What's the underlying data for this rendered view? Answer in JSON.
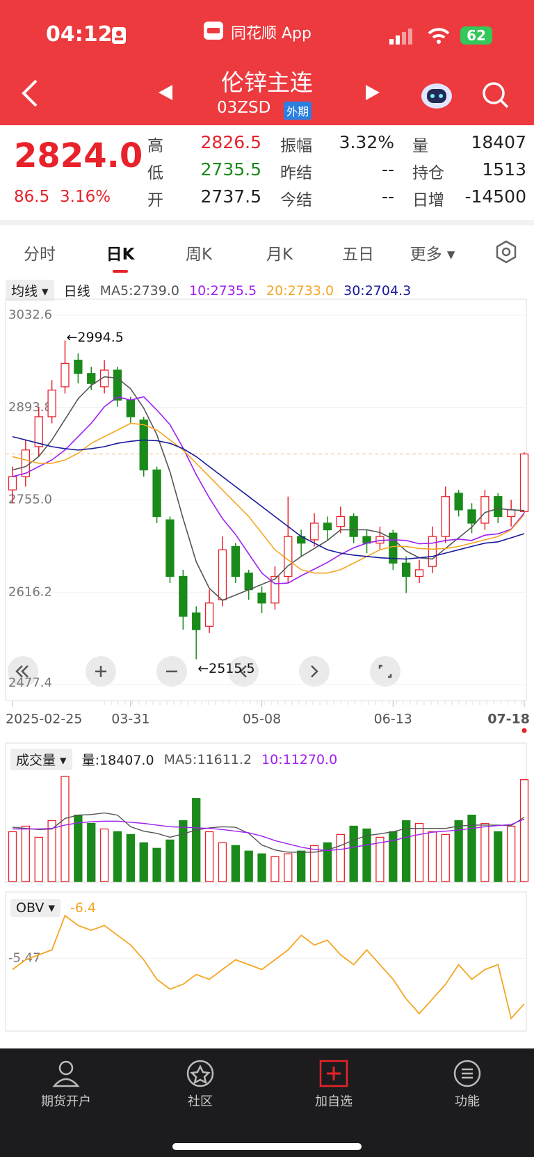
{
  "status": {
    "time": "04:12",
    "app": "同花顺 App",
    "battery": "62"
  },
  "header": {
    "title": "伦锌主连",
    "code": "03ZSD",
    "badge": "外期"
  },
  "quote": {
    "price": "2824.0",
    "change": "86.5",
    "change_pct": "3.16%",
    "fields": [
      {
        "label": "高",
        "value": "2826.5"
      },
      {
        "label": "低",
        "value": "2735.5"
      },
      {
        "label": "开",
        "value": "2737.5"
      },
      {
        "label": "振幅",
        "value": "3.32%"
      },
      {
        "label": "昨结",
        "value": "--"
      },
      {
        "label": "今结",
        "value": "--"
      },
      {
        "label": "量",
        "value": "18407"
      },
      {
        "label": "持仓",
        "value": "1513"
      },
      {
        "label": "日增",
        "value": "-14500"
      }
    ]
  },
  "tabs": [
    "分时",
    "日K",
    "周K",
    "月K",
    "五日",
    "更多"
  ],
  "chart_data": [
    {
      "type": "candlestick",
      "indicator": "均线",
      "period": "日线",
      "categories": [
        "2025-02-25",
        null,
        null,
        null,
        null,
        null,
        null,
        null,
        null,
        "03-31",
        null,
        null,
        null,
        null,
        null,
        null,
        null,
        null,
        null,
        "05-08",
        null,
        null,
        null,
        null,
        null,
        null,
        null,
        null,
        null,
        "06-13",
        null,
        null,
        null,
        null,
        null,
        null,
        null,
        null,
        null,
        "07-18"
      ],
      "open": [
        2770,
        2790,
        2835,
        2880,
        2925,
        2965,
        2945,
        2925,
        2950,
        2905,
        2875,
        2800,
        2725,
        2640,
        2585,
        2565,
        2605,
        2685,
        2645,
        2615,
        2600,
        2640,
        2700,
        2695,
        2720,
        2715,
        2730,
        2700,
        2690,
        2705,
        2660,
        2640,
        2655,
        2700,
        2765,
        2740,
        2720,
        2760,
        2730,
        2737.5
      ],
      "high": [
        2805,
        2845,
        2895,
        2935,
        2994.5,
        2975,
        2955,
        2965,
        2955,
        2910,
        2880,
        2805,
        2730,
        2650,
        2595,
        2620,
        2700,
        2690,
        2650,
        2625,
        2655,
        2760,
        2710,
        2735,
        2730,
        2745,
        2735,
        2710,
        2715,
        2710,
        2670,
        2665,
        2715,
        2775,
        2770,
        2750,
        2770,
        2765,
        2755,
        2826.5
      ],
      "low": [
        2750,
        2775,
        2820,
        2870,
        2915,
        2930,
        2920,
        2915,
        2895,
        2870,
        2790,
        2720,
        2630,
        2560,
        2515.5,
        2555,
        2595,
        2630,
        2605,
        2585,
        2590,
        2630,
        2670,
        2685,
        2695,
        2705,
        2690,
        2675,
        2680,
        2650,
        2615,
        2630,
        2645,
        2690,
        2730,
        2705,
        2710,
        2720,
        2715,
        2735.5
      ],
      "close": [
        2790,
        2830,
        2880,
        2920,
        2960,
        2945,
        2930,
        2950,
        2905,
        2880,
        2800,
        2730,
        2640,
        2580,
        2560,
        2600,
        2680,
        2640,
        2620,
        2600,
        2640,
        2700,
        2690,
        2720,
        2710,
        2730,
        2700,
        2690,
        2700,
        2660,
        2640,
        2650,
        2700,
        2760,
        2740,
        2720,
        2760,
        2730,
        2740,
        2824
      ],
      "series": [
        {
          "name": "MA5:2739.0",
          "color": "#555555",
          "values": [
            2800,
            2805,
            2820,
            2845,
            2876,
            2907,
            2927,
            2940,
            2938,
            2922,
            2893,
            2853,
            2797,
            2727,
            2662,
            2622,
            2604,
            2612,
            2620,
            2628,
            2636,
            2656,
            2670,
            2682,
            2694,
            2710,
            2710,
            2710,
            2706,
            2696,
            2678,
            2668,
            2666,
            2682,
            2698,
            2714,
            2736,
            2742,
            2740,
            2739
          ]
        },
        {
          "name": "10:2735.5",
          "color": "#a020f0",
          "values": [
            2790,
            2795,
            2805,
            2815,
            2830,
            2850,
            2870,
            2895,
            2910,
            2905,
            2910,
            2890,
            2868,
            2833,
            2793,
            2758,
            2727,
            2703,
            2674,
            2645,
            2629,
            2630,
            2641,
            2651,
            2661,
            2673,
            2683,
            2690,
            2694,
            2695,
            2694,
            2689,
            2690,
            2694,
            2696,
            2694,
            2702,
            2704,
            2711,
            2735.5
          ]
        },
        {
          "name": "20:2733.0",
          "color": "#f5a623",
          "values": [
            2820,
            2815,
            2810,
            2810,
            2815,
            2825,
            2840,
            2850,
            2860,
            2870,
            2868,
            2860,
            2845,
            2830,
            2810,
            2790,
            2770,
            2750,
            2730,
            2705,
            2680,
            2665,
            2650,
            2645,
            2645,
            2650,
            2660,
            2670,
            2680,
            2685,
            2685,
            2682,
            2681,
            2682,
            2685,
            2690,
            2695,
            2700,
            2710,
            2733
          ]
        },
        {
          "name": "30:2704.3",
          "color": "#1a1a9a",
          "values": [
            2850,
            2845,
            2840,
            2835,
            2832,
            2830,
            2832,
            2835,
            2840,
            2843,
            2845,
            2844,
            2840,
            2832,
            2820,
            2805,
            2790,
            2775,
            2760,
            2745,
            2730,
            2715,
            2700,
            2690,
            2680,
            2675,
            2672,
            2670,
            2668,
            2667,
            2666,
            2668,
            2670,
            2675,
            2680,
            2685,
            2690,
            2692,
            2698,
            2704.3
          ]
        }
      ],
      "annotations": [
        "←2994.5",
        "←2515.5"
      ],
      "ylim": [
        2477.4,
        3032.6
      ],
      "yticks": [
        3032.6,
        2893.8,
        {
          "value": 2755,
          "label": "2755.0"
        },
        2616.2,
        2477.4
      ],
      "color_up": "#e8222a",
      "color_down": "#1a8a1a"
    },
    {
      "type": "bar",
      "title": "成交量",
      "volume_label": "量:18407.0",
      "values": [
        9000,
        10000,
        8000,
        11000,
        19000,
        12000,
        10500,
        9500,
        9000,
        8500,
        7000,
        6000,
        7500,
        11000,
        15000,
        9000,
        7000,
        6500,
        5500,
        5000,
        4500,
        5000,
        5500,
        6500,
        7000,
        8500,
        10000,
        9500,
        8000,
        9000,
        11000,
        10500,
        9000,
        8500,
        11000,
        12000,
        10500,
        9000,
        10000,
        18407
      ],
      "series": [
        {
          "name": "MA5:11611.2",
          "color": "#555555",
          "values": [
            9800,
            9600,
            9400,
            9500,
            11400,
            12000,
            12100,
            12400,
            12000,
            9900,
            9100,
            8700,
            8000,
            8600,
            9300,
            9700,
            9900,
            9800,
            8700,
            6600,
            5700,
            5300,
            5300,
            5300,
            5700,
            6500,
            7500,
            8300,
            8600,
            9000,
            9600,
            9600,
            9600,
            9600,
            10000,
            10200,
            10200,
            10200,
            10100,
            11611.2
          ]
        },
        {
          "name": "10:11270.0",
          "color": "#a020f0",
          "values": [
            9500,
            9500,
            9500,
            9600,
            10200,
            10600,
            10800,
            10900,
            10900,
            10700,
            10500,
            10200,
            9900,
            9800,
            9700,
            9600,
            9400,
            9100,
            8800,
            8200,
            7400,
            6800,
            6200,
            5800,
            5600,
            5800,
            6200,
            6600,
            7000,
            7400,
            8000,
            8500,
            8900,
            9100,
            9300,
            9600,
            9900,
            10100,
            10300,
            11270
          ]
        }
      ],
      "ylim": [
        0,
        20000
      ]
    },
    {
      "type": "line",
      "title": "OBV",
      "current": -6.4,
      "color": "#f5a623",
      "values": [
        -5.7,
        -5.5,
        -5.4,
        -5.3,
        -4.6,
        -4.8,
        -4.9,
        -4.8,
        -5.0,
        -5.2,
        -5.5,
        -5.9,
        -6.1,
        -6.0,
        -5.8,
        -5.9,
        -5.7,
        -5.5,
        -5.6,
        -5.7,
        -5.5,
        -5.3,
        -5.0,
        -5.2,
        -5.1,
        -5.4,
        -5.6,
        -5.3,
        -5.6,
        -5.9,
        -6.3,
        -6.6,
        -6.3,
        -6.0,
        -5.6,
        -5.9,
        -5.7,
        -5.6,
        -6.7,
        -6.4
      ],
      "ylim": [
        -6.9,
        -4.3
      ],
      "yticks": [
        -5.47
      ]
    }
  ],
  "nav": [
    "期货开户",
    "社区",
    "加自选",
    "功能"
  ]
}
